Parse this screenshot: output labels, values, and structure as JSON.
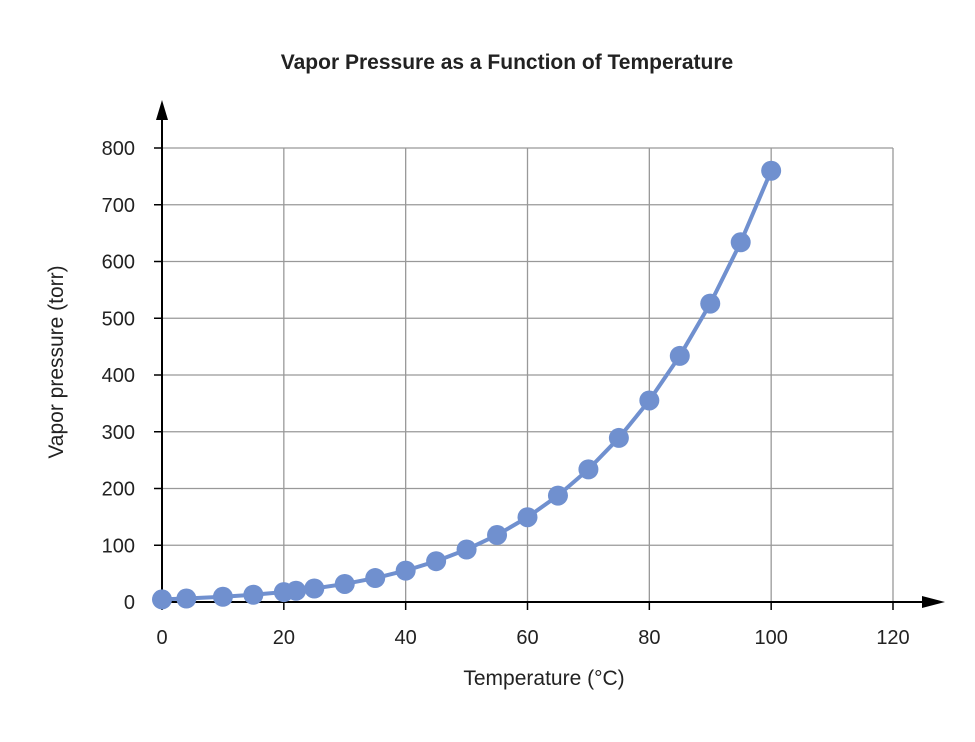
{
  "chart_data": {
    "type": "line",
    "title": "Vapor Pressure as a Function of Temperature",
    "xlabel": "Temperature (°C)",
    "ylabel": "Vapor pressure (torr)",
    "xlim": [
      0,
      120
    ],
    "ylim": [
      0,
      800
    ],
    "xticks": [
      0,
      20,
      40,
      60,
      80,
      100,
      120
    ],
    "yticks": [
      0,
      100,
      200,
      300,
      400,
      500,
      600,
      700,
      800
    ],
    "grid": true,
    "markers": true,
    "color": "#7090cf",
    "x": [
      0,
      4,
      10,
      15,
      20,
      22,
      25,
      30,
      35,
      40,
      45,
      50,
      55,
      60,
      65,
      70,
      75,
      80,
      85,
      90,
      95,
      100
    ],
    "y": [
      4.6,
      6.1,
      9.2,
      12.8,
      17.5,
      19.8,
      23.8,
      31.8,
      42.2,
      55.3,
      71.9,
      92.5,
      118.0,
      149.4,
      187.5,
      233.7,
      289.1,
      355.1,
      433.6,
      525.8,
      633.9,
      760.0
    ]
  }
}
